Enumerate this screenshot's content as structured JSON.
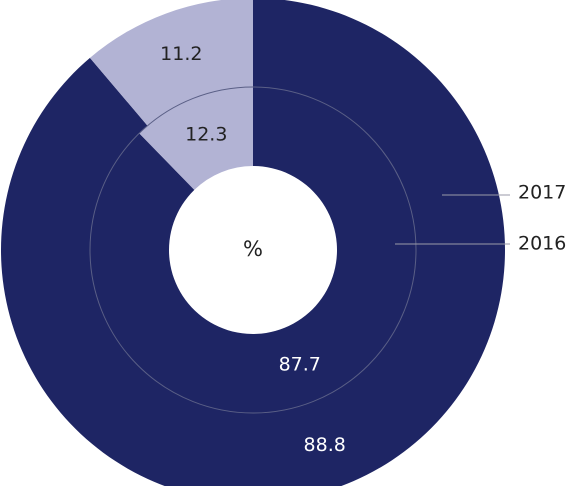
{
  "chart_data": {
    "type": "pie",
    "center_label": "%",
    "rings": [
      {
        "name": "2017",
        "slices": [
          {
            "value": 88.8,
            "label": "88.8",
            "color": "#1e2564",
            "label_color": "#ffffff"
          },
          {
            "value": 11.2,
            "label": "11.2",
            "color": "#b2b3d4",
            "label_color": "#222222"
          }
        ]
      },
      {
        "name": "2016",
        "slices": [
          {
            "value": 87.7,
            "label": "87.7",
            "color": "#1e2564",
            "label_color": "#ffffff"
          },
          {
            "value": 12.3,
            "label": "12.3",
            "color": "#b2b3d4",
            "label_color": "#222222"
          }
        ]
      }
    ],
    "legend_placement": "right",
    "grid": false
  }
}
